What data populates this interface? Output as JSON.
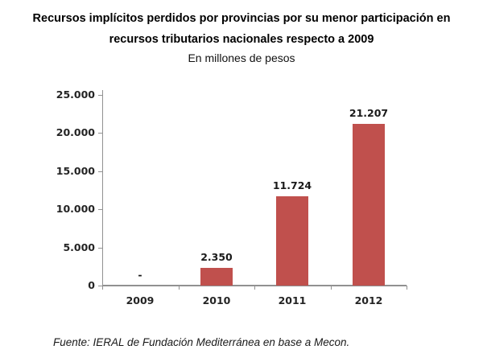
{
  "header": {
    "title_lines": [
      "Recursos implícitos perdidos por provincias por su menor participación en",
      "recursos tributarios nacionales respecto a 2009"
    ],
    "subtitle": "En millones de pesos"
  },
  "footer": {
    "source": "Fuente: IERAL de Fundación Mediterránea en base a Mecon."
  },
  "chart_data": {
    "type": "bar",
    "title": "Recursos implícitos perdidos por provincias por su menor participación en recursos tributarios nacionales respecto a 2009",
    "subtitle": "En millones de pesos",
    "categories": [
      "2009",
      "2010",
      "2011",
      "2012"
    ],
    "values": [
      0,
      2350,
      11724,
      21207
    ],
    "value_labels": [
      "-",
      "2.350",
      "11.724",
      "21.207"
    ],
    "y_tick_values": [
      0,
      5000,
      10000,
      15000,
      20000,
      25000
    ],
    "y_tick_labels": [
      "0",
      "5.000",
      "10.000",
      "15.000",
      "20.000",
      "25.000"
    ],
    "ylim": [
      0,
      25000
    ],
    "xlabel": "",
    "ylabel": "",
    "grid": false,
    "legend": false,
    "bar_color": "#c0504d",
    "axis_color": "#919191",
    "label_color": "#242424",
    "source": "Fuente: IERAL de Fundación Mediterránea en base a Mecon."
  }
}
